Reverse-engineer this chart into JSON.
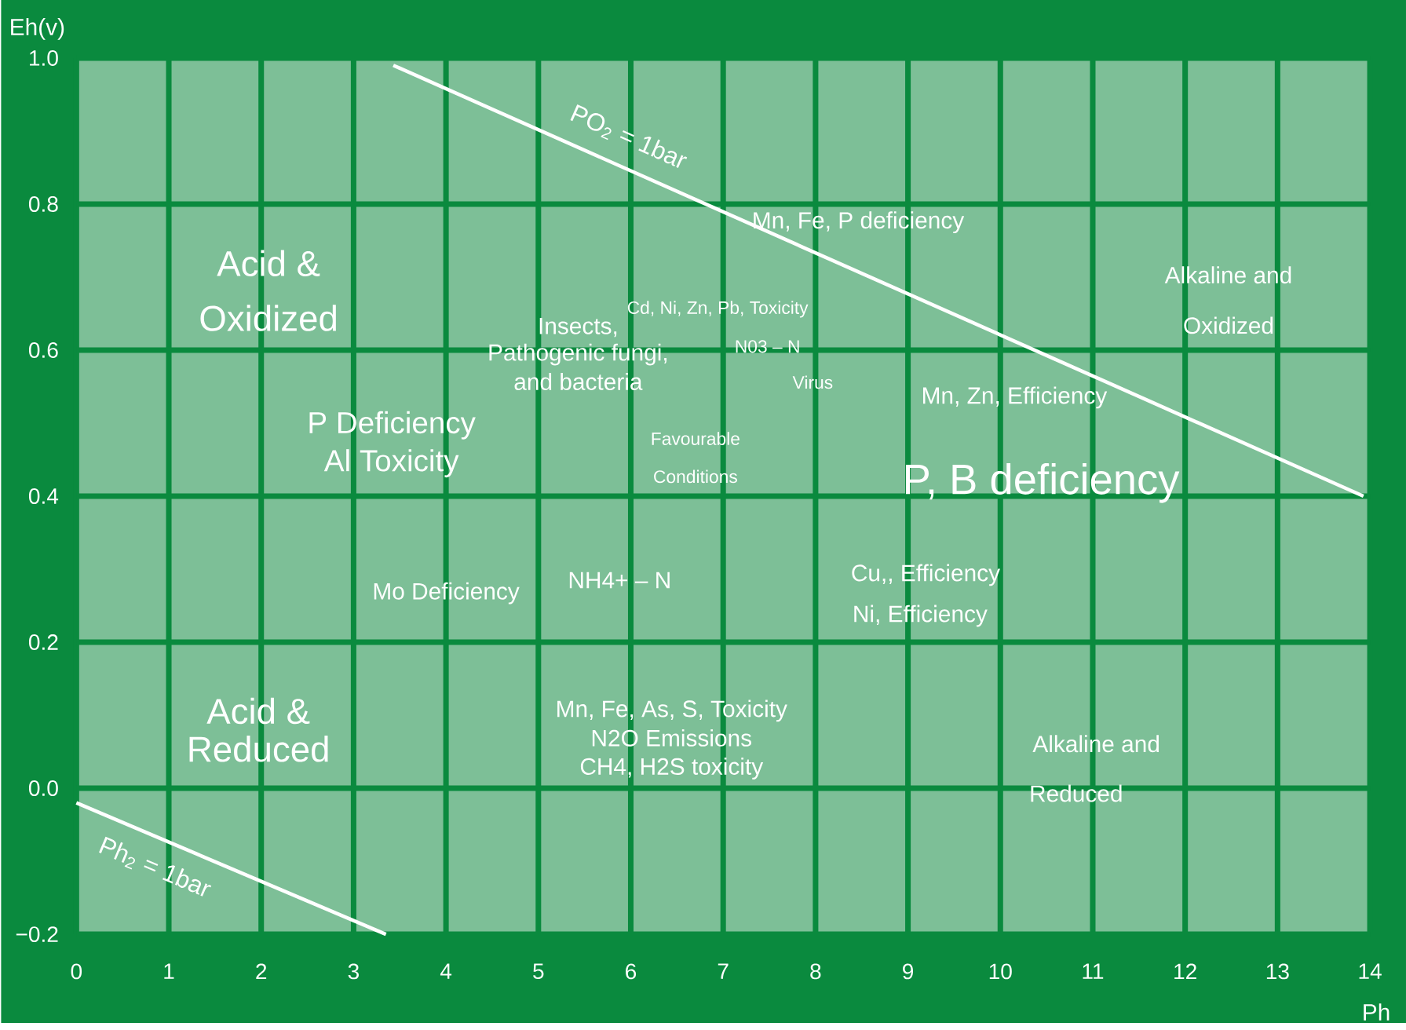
{
  "chart_data": {
    "type": "line",
    "xlabel": "Ph",
    "ylabel": "Eh(v)",
    "xlim": [
      0,
      14
    ],
    "ylim": [
      -0.2,
      1.0
    ],
    "xticks": [
      0,
      1,
      2,
      3,
      4,
      5,
      6,
      7,
      8,
      9,
      10,
      11,
      12,
      13,
      14
    ],
    "yticks": [
      {
        "value": -0.2,
        "label": "−0.2"
      },
      {
        "value": 0.0,
        "label": "0.0"
      },
      {
        "value": 0.2,
        "label": "0.2"
      },
      {
        "value": 0.4,
        "label": "0.4"
      },
      {
        "value": 0.6,
        "label": "0.6"
      },
      {
        "value": 0.8,
        "label": "0.8"
      },
      {
        "value": 1.0,
        "label": "1.0"
      }
    ],
    "grid": true,
    "legend": false,
    "marker": "none",
    "line_style": "solid",
    "series": [
      {
        "name": "PO$_{2}$ = 1bar",
        "color": "#ffffff",
        "x": [
          3.43,
          13.93
        ],
        "values": [
          0.99,
          0.4
        ]
      },
      {
        "name": "Ph$_{2}$ = 1bar",
        "color": "#ffffff",
        "x": [
          0.0,
          3.35
        ],
        "values": [
          -0.02,
          -0.2
        ]
      }
    ],
    "annotations": [
      "Acid &",
      "Oxidized",
      "Mn, Fe, P deficiency",
      "Alkaline and",
      "Oxidized",
      "Cd, Ni, Zn, Pb, Toxicity",
      "N03 – N",
      "Insects,",
      "Pathogenic fungi,",
      "and  bacteria",
      "Virus",
      "Mn, Zn, Efficiency",
      "P Deficiency",
      "Al Toxicity",
      "Favourable",
      "Conditions",
      "P, B deficiency",
      "Mo Deficiency",
      "NH4+ – N",
      "Cu,, Efficiency",
      "Ni, Efficiency",
      "Acid &",
      "Reduced",
      "Mn, Fe, As, S, Toxicity",
      "N2O Emissions",
      "CH4, H2S toxicity",
      "Alkaline and",
      "Reduced"
    ]
  }
}
